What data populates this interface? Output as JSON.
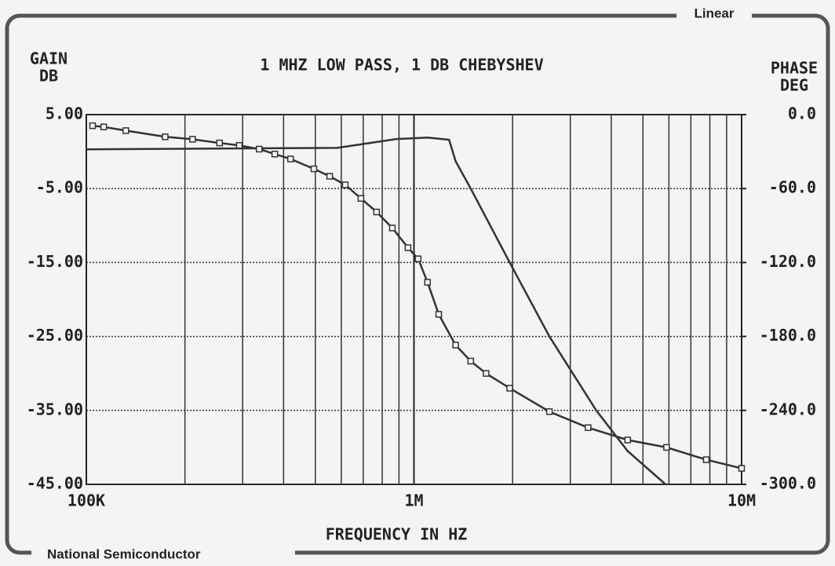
{
  "header": {
    "badge": "Linear"
  },
  "footer": {
    "brand": "National Semiconductor"
  },
  "chart_data": {
    "type": "line",
    "title": "1 MHZ LOW PASS, 1 DB CHEBYSHEV",
    "y_label": [
      "GAIN",
      "DB"
    ],
    "y2_label": [
      "PHASE",
      "DEG"
    ],
    "x_label": "FREQUENCY IN HZ",
    "xscale": "log",
    "grid": true,
    "xlim": [
      100000,
      10000000
    ],
    "xticks": [
      {
        "value": 100000,
        "label": "100K"
      },
      {
        "value": 1000000,
        "label": "1M"
      },
      {
        "value": 10000000,
        "label": "10M"
      }
    ],
    "ylim": [
      -45,
      5
    ],
    "yticks": [
      {
        "value": 5,
        "label": "5.00"
      },
      {
        "value": -5,
        "label": "-5.00"
      },
      {
        "value": -15,
        "label": "-15.00"
      },
      {
        "value": -25,
        "label": "-25.00"
      },
      {
        "value": -35,
        "label": "-35.00"
      },
      {
        "value": -45,
        "label": "-45.00"
      }
    ],
    "y2lim": [
      -300,
      0
    ],
    "y2ticks": [
      {
        "value": 0,
        "label": "0.0"
      },
      {
        "value": -60,
        "label": "-60.0"
      },
      {
        "value": -120,
        "label": "-120.0"
      },
      {
        "value": -180,
        "label": "-180.0"
      },
      {
        "value": -240,
        "label": "-240.0"
      },
      {
        "value": -300,
        "label": "-300.0"
      }
    ],
    "series": [
      {
        "color": "#333333",
        "marker": "none",
        "x": [
          100000,
          583000,
          883000,
          1100000,
          1280000,
          1340000,
          1490000,
          1960000,
          2590000,
          3600000,
          4490000,
          5860000
        ],
        "values": [
          0.3,
          0.5,
          1.7,
          1.9,
          1.6,
          -1.3,
          -5,
          -15,
          -25,
          -35,
          -40.5,
          -45
        ]
      },
      {
        "color": "#333333",
        "marker": "square",
        "axis": "y2",
        "x": [
          104500,
          113000,
          132000,
          174000,
          211000,
          255000,
          293000,
          337000,
          376000,
          420000,
          495000,
          553000,
          617000,
          689000,
          769000,
          859000,
          959000,
          1030000,
          1100000,
          1190000,
          1340000,
          1490000,
          1660000,
          1960000,
          2590000,
          3400000,
          4490000,
          5900000,
          7800000,
          10000000
        ],
        "values": [
          -9,
          -10,
          -13,
          -18,
          -20,
          -23,
          -25,
          -28,
          -32,
          -36,
          -44,
          -50,
          -57,
          -68,
          -79,
          -92,
          -108,
          -117,
          -136,
          -162,
          -187,
          -200,
          -210,
          -222,
          -241,
          -254,
          -264,
          -270,
          -280,
          -287
        ]
      }
    ]
  }
}
